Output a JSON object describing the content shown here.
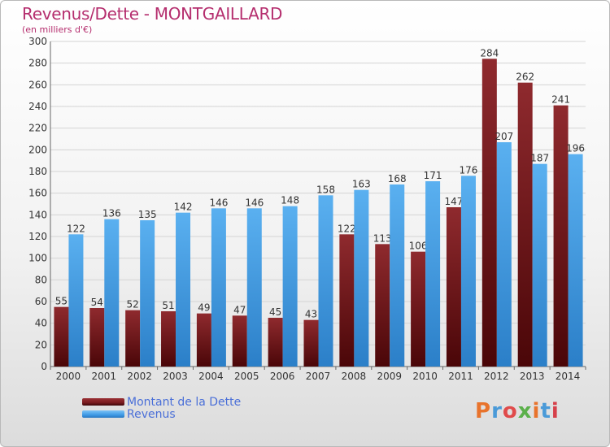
{
  "header": {
    "title": "Revenus/Dette - MONTGAILLARD",
    "subtitle": "(en milliers d'€)"
  },
  "legend": {
    "items": [
      {
        "label": "Montant de la Dette",
        "color": "#7a1b1f"
      },
      {
        "label": "Revenus",
        "color": "#3f9ae6"
      }
    ]
  },
  "logo": {
    "text": "Proxiti",
    "colors": [
      "#e8732c",
      "#4a9ad8",
      "#e04b4b",
      "#5bb04a",
      "#e8732c",
      "#4a9ad8",
      "#d6404a"
    ]
  },
  "chart_data": {
    "type": "bar",
    "categories": [
      "2000",
      "2001",
      "2002",
      "2003",
      "2004",
      "2005",
      "2006",
      "2007",
      "2008",
      "2009",
      "2010",
      "2011",
      "2012",
      "2013",
      "2014"
    ],
    "series": [
      {
        "name": "Montant de la Dette",
        "values": [
          55,
          54,
          52,
          51,
          49,
          47,
          45,
          43,
          122,
          113,
          106,
          147,
          284,
          262,
          241
        ],
        "color": "#7a1b1f"
      },
      {
        "name": "Revenus",
        "values": [
          122,
          136,
          135,
          142,
          146,
          146,
          148,
          158,
          163,
          168,
          171,
          176,
          207,
          187,
          196
        ],
        "color": "#3f9ae6"
      }
    ],
    "ylim": [
      0,
      300
    ],
    "yticks": [
      0,
      20,
      40,
      60,
      80,
      100,
      120,
      140,
      160,
      180,
      200,
      220,
      240,
      260,
      280,
      300
    ],
    "grid": true,
    "legend_position": "bottom-left"
  }
}
